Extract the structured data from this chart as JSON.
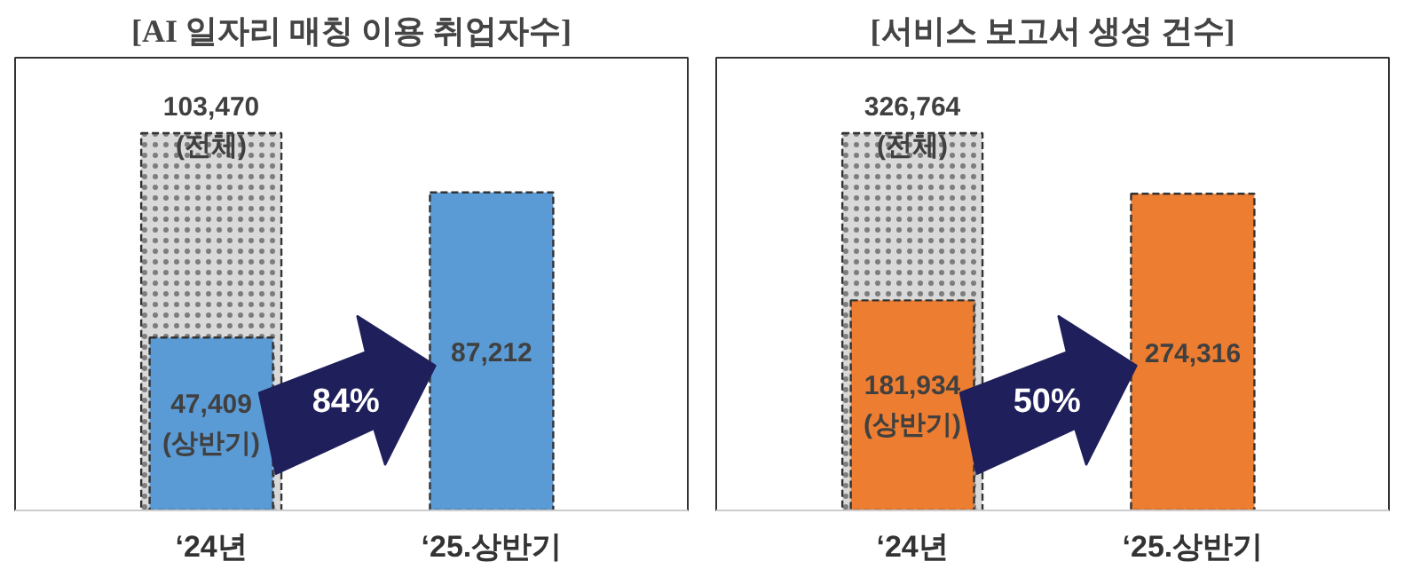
{
  "chart_data": [
    {
      "type": "bar",
      "title": "[AI 일자리 매칭 이용 취업자수]",
      "categories": [
        "‘24년",
        "‘25.상반기"
      ],
      "series": [
        {
          "color": "#d9d9d9",
          "values": [
            103470,
            null
          ],
          "value_labels": [
            "103,470\n(전체)",
            null
          ]
        },
        {
          "color": "#5b9bd5",
          "values": [
            47409,
            87212
          ],
          "value_labels": [
            "47,409\n(상반기)",
            "87,212"
          ]
        }
      ],
      "annotations": [
        "84%"
      ]
    },
    {
      "type": "bar",
      "title": "[서비스 보고서 생성 건수]",
      "categories": [
        "‘24년",
        "‘25.상반기"
      ],
      "series": [
        {
          "color": "#d9d9d9",
          "values": [
            326764,
            null
          ],
          "value_labels": [
            "326,764\n(전체)",
            null
          ]
        },
        {
          "color": "#ed7d31",
          "values": [
            181934,
            274316
          ],
          "value_labels": [
            "181,934\n(상반기)",
            "274,316"
          ]
        }
      ],
      "annotations": [
        "50%"
      ]
    }
  ]
}
